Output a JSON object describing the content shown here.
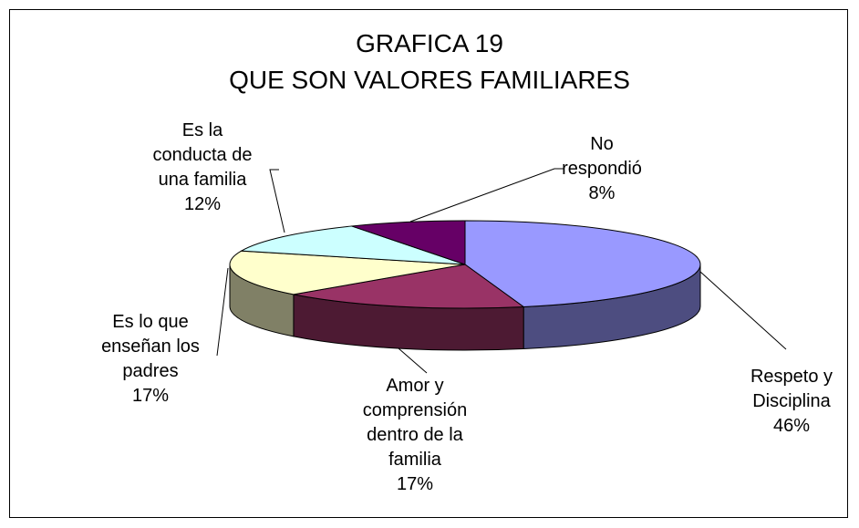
{
  "chart_data": {
    "type": "pie3d",
    "title": [
      "GRAFICA 19",
      "QUE SON VALORES FAMILIARES"
    ],
    "categories": [
      "Respeto y\nDisciplina",
      "Amor y\ncomprensión\ndentro de la\nfamilia",
      "Es lo que\nenseñan los\npadres",
      "Es la\nconducta de\nuna familia",
      "No\nrespondió"
    ],
    "values": [
      46,
      17,
      17,
      12,
      8
    ],
    "value_labels": [
      "46%",
      "17%",
      "17%",
      "12%",
      "8%"
    ],
    "colors": [
      "#9999ff",
      "#993366",
      "#ffffcc",
      "#ccffff",
      "#660066"
    ]
  }
}
